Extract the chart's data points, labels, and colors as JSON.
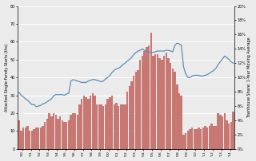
{
  "bar_color": "#c87872",
  "line_color": "#5b8db8",
  "ylabel_left": "Attached Single-Family Starts (ths)",
  "ylabel_right": "Townhouse Share: 1-Year Moving Average",
  "ylim_left": [
    0,
    80
  ],
  "ylim_right": [
    0,
    0.2
  ],
  "yticks_left": [
    0,
    10,
    20,
    30,
    40,
    50,
    60,
    70,
    80
  ],
  "yticks_right": [
    0.0,
    0.02,
    0.04,
    0.06,
    0.08,
    0.1,
    0.12,
    0.14,
    0.16,
    0.18,
    0.2
  ],
  "background": "#ebebeb",
  "grid_color": "#ffffff",
  "bar_values": [
    16,
    10,
    12,
    12,
    13,
    10,
    10,
    11,
    12,
    12,
    12,
    13,
    15,
    17,
    20,
    18,
    20,
    19,
    17,
    18,
    16,
    15,
    15,
    16,
    19,
    20,
    20,
    19,
    25,
    28,
    30,
    29,
    28,
    30,
    31,
    30,
    25,
    25,
    25,
    24,
    25,
    28,
    29,
    30,
    25,
    26,
    24,
    25,
    25,
    25,
    32,
    35,
    38,
    41,
    43,
    44,
    50,
    52,
    55,
    57,
    58,
    65,
    52,
    53,
    53,
    51,
    50,
    52,
    54,
    51,
    48,
    45,
    43,
    36,
    31,
    30,
    8,
    9,
    10,
    11,
    12,
    11,
    11,
    12,
    11,
    12,
    13,
    12,
    13,
    14,
    13,
    13,
    20,
    19,
    18,
    20,
    16,
    14,
    15,
    21
  ],
  "line_values": [
    0.079,
    0.075,
    0.073,
    0.07,
    0.068,
    0.065,
    0.062,
    0.062,
    0.059,
    0.06,
    0.061,
    0.063,
    0.064,
    0.066,
    0.068,
    0.07,
    0.074,
    0.076,
    0.076,
    0.076,
    0.076,
    0.075,
    0.077,
    0.078,
    0.095,
    0.097,
    0.096,
    0.095,
    0.094,
    0.093,
    0.093,
    0.093,
    0.095,
    0.096,
    0.097,
    0.097,
    0.096,
    0.095,
    0.094,
    0.095,
    0.098,
    0.1,
    0.103,
    0.107,
    0.11,
    0.112,
    0.113,
    0.115,
    0.118,
    0.12,
    0.123,
    0.125,
    0.128,
    0.132,
    0.135,
    0.137,
    0.138,
    0.14,
    0.138,
    0.137,
    0.136,
    0.135,
    0.135,
    0.136,
    0.137,
    0.137,
    0.137,
    0.137,
    0.138,
    0.138,
    0.137,
    0.136,
    0.145,
    0.148,
    0.147,
    0.145,
    0.115,
    0.105,
    0.1,
    0.1,
    0.102,
    0.103,
    0.103,
    0.103,
    0.102,
    0.102,
    0.103,
    0.104,
    0.106,
    0.108,
    0.11,
    0.113,
    0.118,
    0.122,
    0.126,
    0.13,
    0.128,
    0.125,
    0.122,
    0.12
  ],
  "year_labels": [
    "'90",
    "'91",
    "'92",
    "'93",
    "'94",
    "'95",
    "'96",
    "'97",
    "'98",
    "'99",
    "'00",
    "'01",
    "'02",
    "'03",
    "'04",
    "'05",
    "'06",
    "'07",
    "'08",
    "'09",
    "'10",
    "'11",
    "'12",
    "'13",
    "'14"
  ]
}
